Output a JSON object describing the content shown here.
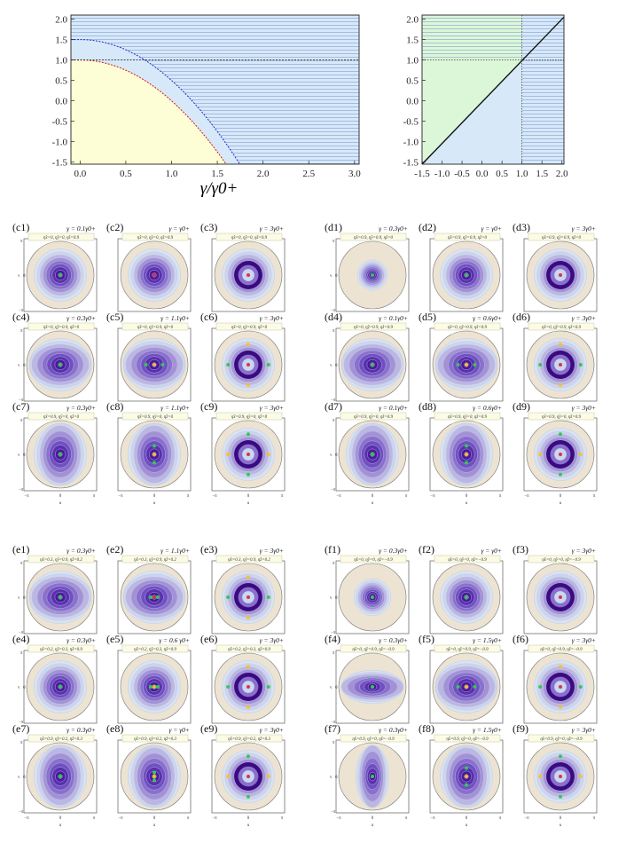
{
  "top_left": {
    "xlabel": "γ/γ0+",
    "x_ticks": [
      "0.0",
      "0.5",
      "1.0",
      "1.5",
      "2.0",
      "2.5",
      "3.0"
    ],
    "y_ticks": [
      "2.0",
      "1.5",
      "1.0",
      "0.5",
      "0.0",
      "-0.5",
      "-1.0",
      "-1.5"
    ],
    "chart_data": {
      "type": "area",
      "xlim": [
        -0.1,
        3.05
      ],
      "ylim": [
        -1.55,
        2.1
      ],
      "boundary_red": {
        "x0": 0.0,
        "y0": 1.0,
        "curvature": 1.0
      },
      "boundary_blue": {
        "x0": 0.0,
        "y0": 1.5,
        "curvature": 1.0
      },
      "hline": 1.0,
      "region_colors": {
        "yellow": "#fdfdd6",
        "blue": "#d7e8f9",
        "stripe": "#8fb0d9"
      }
    }
  },
  "top_right": {
    "x_ticks": [
      "-1.5",
      "-1.0",
      "-0.5",
      "0.0",
      "0.5",
      "1.0",
      "1.5",
      "2.0"
    ],
    "y_ticks": [
      "2.0",
      "1.5",
      "1.0",
      "0.5",
      "0.0",
      "-0.5",
      "-1.0",
      "-1.5"
    ],
    "chart_data": {
      "type": "area",
      "xlim": [
        -1.5,
        2.05
      ],
      "ylim": [
        -1.55,
        2.1
      ],
      "diagonal": true,
      "vline": 1.0,
      "hline": 1.0,
      "region_colors": {
        "green": "#dcf7d8",
        "blue": "#d7e8f9"
      }
    }
  },
  "axis_u": "u",
  "axis_v": "v",
  "pi_pos": "π",
  "pi_neg": "−π",
  "zero": "0",
  "colors": {
    "outer": "#ece3d2",
    "dark": "#3a0a80",
    "mid": "#7b5cc6",
    "light": "#c8d8f0",
    "red": "#e0304e",
    "green": "#34c759",
    "yellow": "#f5c033"
  },
  "groups": [
    {
      "letter": "c",
      "panels": [
        {
          "label": "(c1)",
          "gamma": "γ = 0.1γ0+",
          "etas": "η̃x=0, η̃y=0, η̃z=0.9",
          "shape": "round",
          "dots": [
            [
              "g",
              0,
              0
            ]
          ]
        },
        {
          "label": "(c2)",
          "gamma": "γ = γ0+",
          "etas": "η̃x=0, η̃y=0, η̃z=0.9",
          "shape": "round",
          "dots": [
            [
              "r",
              0,
              0
            ]
          ]
        },
        {
          "label": "(c3)",
          "gamma": "γ = 3γ0+",
          "etas": "η̃x=0, η̃y=0, η̃z=0.9",
          "shape": "ring",
          "dots": [
            [
              "r",
              0,
              0
            ]
          ]
        },
        {
          "label": "(c4)",
          "gamma": "γ = 0.3γ0+",
          "etas": "η̃x=0, η̃y=0.9, η̃z=0",
          "shape": "h",
          "dots": [
            [
              "g",
              0,
              0
            ]
          ]
        },
        {
          "label": "(c5)",
          "gamma": "γ = 1.1γ0+",
          "etas": "η̃x=0, η̃y=0.9, η̃z=0",
          "shape": "h",
          "dots": [
            [
              "g",
              -0.25,
              0
            ],
            [
              "y",
              0,
              0
            ],
            [
              "g",
              0.25,
              0
            ]
          ]
        },
        {
          "label": "(c6)",
          "gamma": "γ = 3γ0+",
          "etas": "η̃x=0, η̃y=0.9, η̃z=0",
          "shape": "ring",
          "dots": [
            [
              "r",
              0,
              0
            ],
            [
              "y",
              0,
              -0.6
            ],
            [
              "y",
              0,
              0.6
            ],
            [
              "g",
              -0.6,
              0
            ],
            [
              "g",
              0.6,
              0
            ]
          ]
        },
        {
          "label": "(c7)",
          "gamma": "γ = 0.3γ0+",
          "etas": "η̃x=0.9, η̃y=0, η̃z=0",
          "shape": "v",
          "dots": [
            [
              "g",
              0,
              0
            ]
          ]
        },
        {
          "label": "(c8)",
          "gamma": "γ = 1.1γ0+",
          "etas": "η̃x=0.9, η̃y=0, η̃z=0",
          "shape": "v",
          "dots": [
            [
              "g",
              0,
              -0.25
            ],
            [
              "y",
              0,
              0
            ],
            [
              "g",
              0,
              0.25
            ]
          ]
        },
        {
          "label": "(c9)",
          "gamma": "γ = 3γ0+",
          "etas": "η̃x=0.9, η̃y=0, η̃z=0",
          "shape": "ring",
          "dots": [
            [
              "r",
              0,
              0
            ],
            [
              "g",
              0,
              -0.6
            ],
            [
              "g",
              0,
              0.6
            ],
            [
              "y",
              -0.6,
              0
            ],
            [
              "y",
              0.6,
              0
            ]
          ]
        }
      ]
    },
    {
      "letter": "d",
      "panels": [
        {
          "label": "(d1)",
          "gamma": "γ = 0.3γ0+",
          "etas": "η̃x=0.9, η̃y=0.9, η̃z=0",
          "shape": "small",
          "dots": [
            [
              "g",
              0,
              0
            ]
          ]
        },
        {
          "label": "(d2)",
          "gamma": "γ = γ0+",
          "etas": "η̃x=0.9, η̃y=0.9, η̃z=0",
          "shape": "round",
          "dots": [
            [
              "g",
              0,
              0
            ]
          ]
        },
        {
          "label": "(d3)",
          "gamma": "γ = 3γ0+",
          "etas": "η̃x=0.9, η̃y=0.9, η̃z=0",
          "shape": "ring",
          "dots": [
            [
              "r",
              0,
              0
            ]
          ]
        },
        {
          "label": "(d4)",
          "gamma": "γ = 0.1γ0+",
          "etas": "η̃x=0, η̃y=0.9, η̃z=0.9",
          "shape": "h",
          "dots": [
            [
              "g",
              0,
              0
            ]
          ]
        },
        {
          "label": "(d5)",
          "gamma": "γ = 0.6γ0+",
          "etas": "η̃x=0, η̃y=0.9, η̃z=0.9",
          "shape": "h",
          "dots": [
            [
              "g",
              -0.25,
              0
            ],
            [
              "y",
              0,
              0
            ],
            [
              "g",
              0.25,
              0
            ]
          ]
        },
        {
          "label": "(d6)",
          "gamma": "γ = 3γ0+",
          "etas": "η̃x=0, η̃y=0.9, η̃z=0.9",
          "shape": "ring",
          "dots": [
            [
              "r",
              0,
              0
            ],
            [
              "y",
              0,
              -0.6
            ],
            [
              "y",
              0,
              0.6
            ],
            [
              "g",
              -0.6,
              0
            ],
            [
              "g",
              0.6,
              0
            ]
          ]
        },
        {
          "label": "(d7)",
          "gamma": "γ = 0.1γ0+",
          "etas": "η̃x=0.9, η̃y=0, η̃z=0.9",
          "shape": "v",
          "dots": [
            [
              "g",
              0,
              0
            ]
          ]
        },
        {
          "label": "(d8)",
          "gamma": "γ = 0.6γ0+",
          "etas": "η̃x=0.9, η̃y=0, η̃z=0.9",
          "shape": "v",
          "dots": [
            [
              "g",
              0,
              -0.25
            ],
            [
              "y",
              0,
              0
            ],
            [
              "g",
              0,
              0.25
            ]
          ]
        },
        {
          "label": "(d9)",
          "gamma": "γ = 3γ0+",
          "etas": "η̃x=0.9, η̃y=0, η̃z=0.9",
          "shape": "ring",
          "dots": [
            [
              "r",
              0,
              0
            ],
            [
              "g",
              0,
              -0.6
            ],
            [
              "g",
              0,
              0.6
            ],
            [
              "y",
              -0.6,
              0
            ],
            [
              "y",
              0.6,
              0
            ]
          ]
        }
      ]
    },
    {
      "letter": "e",
      "panels": [
        {
          "label": "(e1)",
          "gamma": "γ = 0.3γ0+",
          "etas": "η̃x=0.3, η̃y=0.9, η̃z=0.2",
          "shape": "h",
          "dots": [
            [
              "g",
              0,
              0
            ]
          ]
        },
        {
          "label": "(e2)",
          "gamma": "γ = 1.1γ0+",
          "etas": "η̃x=0.3, η̃y=0.9, η̃z=0.2",
          "shape": "h",
          "dots": [
            [
              "g",
              -0.1,
              0
            ],
            [
              "r",
              0,
              0
            ],
            [
              "g",
              0.1,
              0
            ]
          ]
        },
        {
          "label": "(e3)",
          "gamma": "γ = 3γ0+",
          "etas": "η̃x=0.3, η̃y=0.9, η̃z=0.2",
          "shape": "ring",
          "dots": [
            [
              "r",
              0,
              0
            ],
            [
              "y",
              0,
              -0.6
            ],
            [
              "y",
              0,
              0.6
            ],
            [
              "g",
              -0.6,
              0
            ],
            [
              "g",
              0.6,
              0
            ]
          ]
        },
        {
          "label": "(e4)",
          "gamma": "γ = 0.3γ0+",
          "etas": "η̃x=0.2, η̃y=0.3, η̃z=0.9",
          "shape": "round",
          "dots": [
            [
              "g",
              0,
              0
            ]
          ]
        },
        {
          "label": "(e5)",
          "gamma": "γ = 0.6 γ0+",
          "etas": "η̃x=0.2, η̃y=0.3, η̃z=0.9",
          "shape": "round",
          "dots": [
            [
              "g",
              -0.1,
              0
            ],
            [
              "y",
              0,
              0
            ],
            [
              "g",
              0.1,
              0
            ]
          ]
        },
        {
          "label": "(e6)",
          "gamma": "γ = 3γ0+",
          "etas": "η̃x=0.2, η̃y=0.3, η̃z=0.9",
          "shape": "ring",
          "dots": [
            [
              "r",
              0,
              0
            ],
            [
              "y",
              0,
              -0.6
            ],
            [
              "y",
              0,
              0.6
            ],
            [
              "g",
              -0.6,
              0
            ],
            [
              "g",
              0.6,
              0
            ]
          ]
        },
        {
          "label": "(e7)",
          "gamma": "γ = 0.3γ0+",
          "etas": "η̃x=0.9, η̃y=0.2, η̃z=0.3",
          "shape": "v",
          "dots": [
            [
              "g",
              0,
              0
            ]
          ]
        },
        {
          "label": "(e8)",
          "gamma": "γ = γ0+",
          "etas": "η̃x=0.9, η̃y=0.2, η̃z=0.3",
          "shape": "v",
          "dots": [
            [
              "g",
              0,
              -0.12
            ],
            [
              "y",
              0,
              0
            ],
            [
              "g",
              0,
              0.12
            ]
          ]
        },
        {
          "label": "(e9)",
          "gamma": "γ = 3γ0+",
          "etas": "η̃x=0.9, η̃y=0.2, η̃z=0.3",
          "shape": "ring",
          "dots": [
            [
              "r",
              0,
              0
            ],
            [
              "g",
              0,
              -0.6
            ],
            [
              "g",
              0,
              0.6
            ],
            [
              "y",
              -0.6,
              0
            ],
            [
              "y",
              0.6,
              0
            ]
          ]
        }
      ]
    },
    {
      "letter": "f",
      "panels": [
        {
          "label": "(f1)",
          "gamma": "γ = 0.3γ0+",
          "etas": "η̃x=0, η̃y=0, η̃z=−0.9",
          "shape": "light",
          "dots": [
            [
              "g",
              0,
              0
            ]
          ]
        },
        {
          "label": "(f2)",
          "gamma": "γ = γ0+",
          "etas": "η̃x=0, η̃y=0, η̃z=−0.9",
          "shape": "round",
          "dots": [
            [
              "g",
              0,
              0
            ]
          ]
        },
        {
          "label": "(f3)",
          "gamma": "γ = 3γ0+",
          "etas": "η̃x=0, η̃y=0, η̃z=−0.9",
          "shape": "ring",
          "dots": [
            [
              "r",
              0,
              0
            ]
          ]
        },
        {
          "label": "(f4)",
          "gamma": "γ = 0.3γ0+",
          "etas": "η̃x=0, η̃y=0.9, η̃z=−0.9",
          "shape": "hl",
          "dots": [
            [
              "g",
              0,
              0
            ]
          ]
        },
        {
          "label": "(f5)",
          "gamma": "γ = 1.5γ0+",
          "etas": "η̃x=0, η̃y=0.9, η̃z=−0.9",
          "shape": "h",
          "dots": [
            [
              "g",
              -0.25,
              0
            ],
            [
              "y",
              0,
              0
            ],
            [
              "g",
              0.25,
              0
            ]
          ]
        },
        {
          "label": "(f6)",
          "gamma": "γ = 3γ0+",
          "etas": "η̃x=0, η̃y=0.9, η̃z=−0.9",
          "shape": "ring",
          "dots": [
            [
              "r",
              0,
              0
            ],
            [
              "y",
              0,
              -0.6
            ],
            [
              "y",
              0,
              0.6
            ],
            [
              "g",
              -0.6,
              0
            ],
            [
              "g",
              0.6,
              0
            ]
          ]
        },
        {
          "label": "(f7)",
          "gamma": "γ = 0.3γ0+",
          "etas": "η̃x=0.9, η̃y=0, η̃z=−0.9",
          "shape": "vl",
          "dots": [
            [
              "g",
              0,
              0
            ]
          ]
        },
        {
          "label": "(f8)",
          "gamma": "γ = 1.5γ0+",
          "etas": "η̃x=0.9, η̃y=0, η̃z=−0.9",
          "shape": "v",
          "dots": [
            [
              "g",
              0,
              -0.25
            ],
            [
              "y",
              0,
              0
            ],
            [
              "g",
              0,
              0.25
            ]
          ]
        },
        {
          "label": "(f9)",
          "gamma": "γ = 3γ0+",
          "etas": "η̃x=0.9, η̃y=0, η̃z=−0.9",
          "shape": "ring",
          "dots": [
            [
              "r",
              0,
              0
            ],
            [
              "g",
              0,
              -0.6
            ],
            [
              "g",
              0,
              0.6
            ],
            [
              "y",
              -0.6,
              0
            ],
            [
              "y",
              0.6,
              0
            ]
          ]
        }
      ]
    }
  ]
}
